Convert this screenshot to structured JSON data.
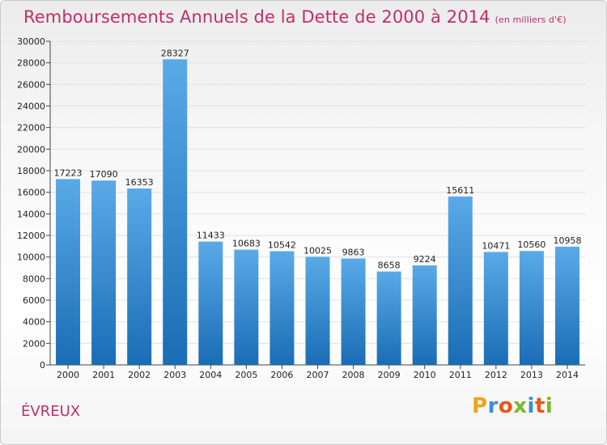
{
  "title": "Remboursements Annuels de la Dette de 2000 à 2014",
  "unit": "(en milliers d'€)",
  "city": "ÉVREUX",
  "logo": "Proxiti",
  "colors": {
    "title": "#c22d6b",
    "bar_top": "#5aaae8",
    "bar_bottom": "#1a6db5",
    "grid": "#e2e2e2"
  },
  "chart_data": {
    "type": "bar",
    "title": "Remboursements Annuels de la Dette de 2000 à 2014",
    "xlabel": "",
    "ylabel": "",
    "categories": [
      "2000",
      "2001",
      "2002",
      "2003",
      "2004",
      "2005",
      "2006",
      "2007",
      "2008",
      "2009",
      "2010",
      "2011",
      "2012",
      "2013",
      "2014"
    ],
    "values": [
      17223,
      17090,
      16353,
      28327,
      11433,
      10683,
      10542,
      10025,
      9863,
      8658,
      9224,
      15611,
      10471,
      10560,
      10958
    ],
    "ylim": [
      0,
      30000
    ],
    "yticks": [
      0,
      2000,
      4000,
      6000,
      8000,
      10000,
      12000,
      14000,
      16000,
      18000,
      20000,
      22000,
      24000,
      26000,
      28000,
      30000
    ],
    "grid": true
  }
}
